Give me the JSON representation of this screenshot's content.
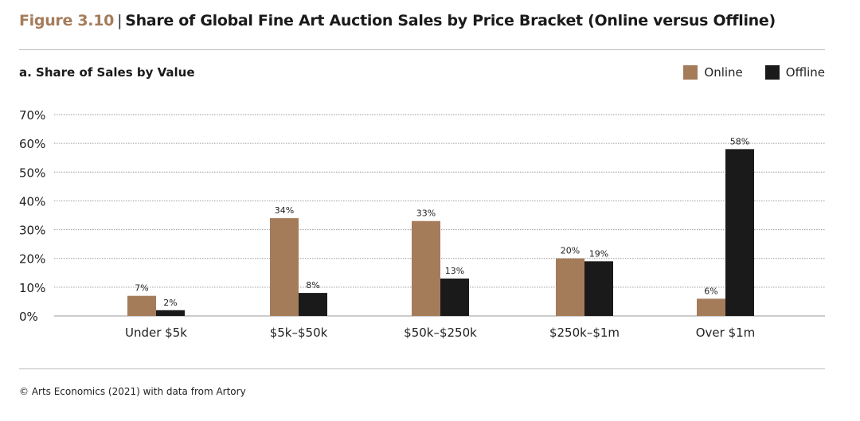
{
  "header": {
    "figure_label": "Figure 3.10",
    "title": "Share of Global Fine Art Auction Sales by Price Bracket (Online versus Offline)"
  },
  "subtitle": "a. Share of Sales by Value",
  "source": "© Arts Economics (2021) with data from Artory",
  "colors": {
    "online": "#a57c5a",
    "offline": "#1a1a1a",
    "accent": "#a57c5a"
  },
  "chart_data": {
    "type": "bar",
    "title": "a. Share of Sales by Value",
    "categories": [
      "Under $5k",
      "$5k–$50k",
      "$50k–$250k",
      "$250k–$1m",
      "Over $1m"
    ],
    "series": [
      {
        "name": "Online",
        "values": [
          7,
          34,
          33,
          20,
          6
        ],
        "labels": [
          "7%",
          "34%",
          "33%",
          "20%",
          "6%"
        ]
      },
      {
        "name": "Offline",
        "values": [
          2,
          8,
          13,
          19,
          58
        ],
        "labels": [
          "2%",
          "8%",
          "13%",
          "19%",
          "58%"
        ]
      }
    ],
    "yticks": [
      "0%",
      "10%",
      "20%",
      "30%",
      "40%",
      "50%",
      "60%",
      "70%"
    ],
    "ylim": [
      0,
      70
    ],
    "grid": true,
    "legend": "top-right",
    "xlabel": "",
    "ylabel": ""
  }
}
